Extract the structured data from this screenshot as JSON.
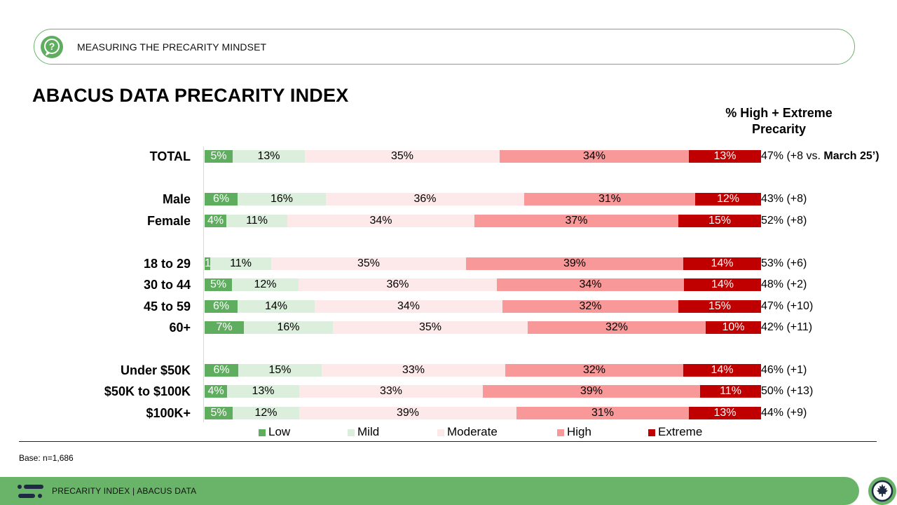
{
  "header": {
    "section_label": "MEASURING THE PRECARITY MINDSET",
    "icon": "question-bubble-icon"
  },
  "title": "ABACUS DATA PRECARITY INDEX",
  "right_header": "% High + Extreme Precarity",
  "chart_data": {
    "type": "bar",
    "orientation": "horizontal",
    "stacked": true,
    "title": "ABACUS DATA PRECARITY INDEX",
    "categories": [
      "TOTAL",
      "Male",
      "Female",
      "18 to 29",
      "30 to 44",
      "45 to 59",
      "60+",
      "Under $50K",
      "$50K to $100K",
      "$100K+"
    ],
    "groups": [
      [
        "TOTAL"
      ],
      [
        "Male",
        "Female"
      ],
      [
        "18 to 29",
        "30 to 44",
        "45 to 59",
        "60+"
      ],
      [
        "Under $50K",
        "$50K to $100K",
        "$100K+"
      ]
    ],
    "series": [
      {
        "name": "Low",
        "color": "#5fae5f",
        "values": [
          5,
          6,
          4,
          1,
          5,
          6,
          7,
          6,
          4,
          5
        ],
        "labels": [
          "5%",
          "6%",
          "4%",
          "1%",
          "5%",
          "6%",
          "7%",
          "6%",
          "4%",
          "5%"
        ]
      },
      {
        "name": "Mild",
        "color": "#dcefdc",
        "values": [
          13,
          16,
          11,
          11,
          12,
          14,
          16,
          15,
          13,
          12
        ],
        "labels": [
          "13%",
          "16%",
          "11%",
          "11%",
          "12%",
          "14%",
          "16%",
          "15%",
          "13%",
          "12%"
        ]
      },
      {
        "name": "Moderate",
        "color": "#fde9e9",
        "values": [
          35,
          36,
          34,
          35,
          36,
          34,
          35,
          33,
          33,
          39
        ],
        "labels": [
          "35%",
          "36%",
          "34%",
          "35%",
          "36%",
          "34%",
          "35%",
          "33%",
          "33%",
          "39%"
        ]
      },
      {
        "name": "High",
        "color": "#f89898",
        "values": [
          34,
          31,
          37,
          39,
          34,
          32,
          32,
          32,
          39,
          31
        ],
        "labels": [
          "34%",
          "31%",
          "37%",
          "39%",
          "34%",
          "32%",
          "32%",
          "32%",
          "39%",
          "31%"
        ]
      },
      {
        "name": "Extreme",
        "color": "#c00000",
        "values": [
          13,
          12,
          15,
          14,
          14,
          15,
          10,
          14,
          11,
          13
        ],
        "labels": [
          "13%",
          "12%",
          "15%",
          "14%",
          "14%",
          "15%",
          "10%",
          "14%",
          "11%",
          "13%"
        ]
      }
    ],
    "high_extreme": [
      {
        "text": "47% (+8 vs. ",
        "bold": "March 25’)"
      },
      {
        "text": "43% (+8)",
        "bold": ""
      },
      {
        "text": "52% (+8)",
        "bold": ""
      },
      {
        "text": "53% (+6)",
        "bold": ""
      },
      {
        "text": "48% (+2)",
        "bold": ""
      },
      {
        "text": "47% (+10)",
        "bold": ""
      },
      {
        "text": "42% (+11)",
        "bold": ""
      },
      {
        "text": "46% (+1)",
        "bold": ""
      },
      {
        "text": "50% (+13)",
        "bold": ""
      },
      {
        "text": "44% (+9)",
        "bold": ""
      }
    ],
    "xlim": [
      0,
      100
    ],
    "legend_position": "bottom"
  },
  "base_note": "Base: n=1,686",
  "footer": {
    "text": "PRECARITY INDEX  |  ABACUS DATA",
    "logo_icon": "abacus-logo-icon",
    "badge_icon": "canada-maple-leaf-icon"
  }
}
